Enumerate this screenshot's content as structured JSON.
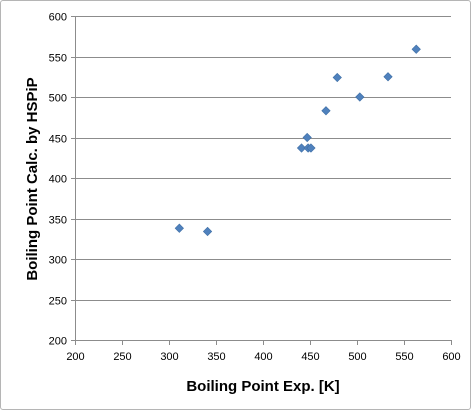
{
  "chart_data": {
    "type": "scatter",
    "title": "",
    "xlabel": "Boiling Point Exp. [K]",
    "ylabel": "Boiling Point Calc. by HSPiP",
    "xlim": [
      200,
      600
    ],
    "ylim": [
      200,
      600
    ],
    "xticks": [
      200,
      250,
      300,
      350,
      400,
      450,
      500,
      550,
      600
    ],
    "yticks": [
      200,
      250,
      300,
      350,
      400,
      450,
      500,
      550,
      600
    ],
    "grid": "horizontal",
    "legend": "none",
    "marker": "diamond",
    "marker_color": "#4f81bd",
    "series": [
      {
        "points": [
          {
            "x": 311,
            "y": 338
          },
          {
            "x": 341,
            "y": 334
          },
          {
            "x": 441,
            "y": 437
          },
          {
            "x": 448,
            "y": 437
          },
          {
            "x": 451,
            "y": 437
          },
          {
            "x": 447,
            "y": 450
          },
          {
            "x": 467,
            "y": 483
          },
          {
            "x": 479,
            "y": 524
          },
          {
            "x": 503,
            "y": 500
          },
          {
            "x": 533,
            "y": 525
          },
          {
            "x": 563,
            "y": 559
          }
        ]
      }
    ]
  }
}
